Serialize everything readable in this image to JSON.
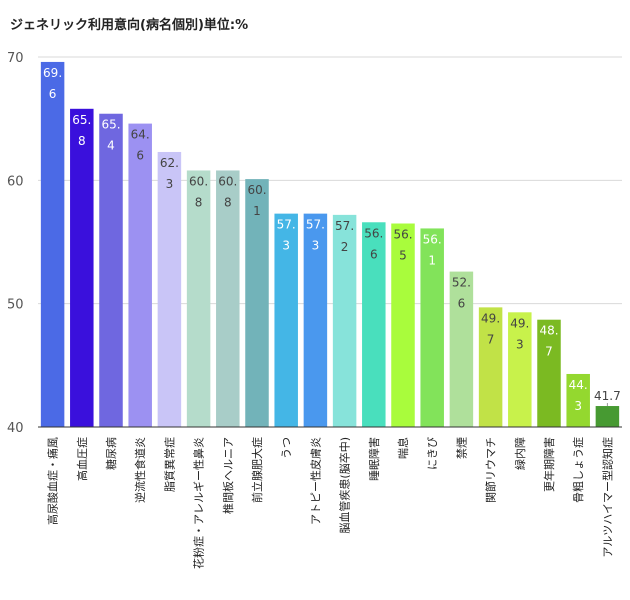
{
  "title": "ジェネリック利用意向(病名個別)単位:%",
  "chart_data": {
    "type": "bar",
    "title": "ジェネリック利用意向(病名個別)単位:%",
    "ylim": [
      40,
      70
    ],
    "yticks": [
      40,
      50,
      60,
      70
    ],
    "grid": true,
    "categories": [
      "高尿酸血症・痛風",
      "高血圧症",
      "糖尿病",
      "逆流性食道炎",
      "脂質異常症",
      "花粉症・アレルギー性鼻炎",
      "椎間板ヘルニア",
      "前立腺肥大症",
      "うつ",
      "アトピー性皮膚炎",
      "脳血管疾患(脳卒中)",
      "睡眠障害",
      "喘息",
      "にきび",
      "禁煙",
      "関節リウマチ",
      "緑内障",
      "更年期障害",
      "骨粗しょう症",
      "アルツハイマー型認知症"
    ],
    "values": [
      69.6,
      65.8,
      65.4,
      64.6,
      62.3,
      60.8,
      60.8,
      60.1,
      57.3,
      57.3,
      57.2,
      56.6,
      56.5,
      56.1,
      52.6,
      49.7,
      49.3,
      48.7,
      44.3,
      41.7
    ],
    "value_labels": [
      [
        "69.",
        "6"
      ],
      [
        "65.",
        "8"
      ],
      [
        "65.",
        "4"
      ],
      [
        "64.",
        "6"
      ],
      [
        "62.",
        "3"
      ],
      [
        "60.",
        "8"
      ],
      [
        "60.",
        "8"
      ],
      [
        "60.",
        "1"
      ],
      [
        "57.",
        "3"
      ],
      [
        "57.",
        "3"
      ],
      [
        "57.",
        "2"
      ],
      [
        "56.",
        "6"
      ],
      [
        "56.",
        "5"
      ],
      [
        "56.",
        "1"
      ],
      [
        "52.",
        "6"
      ],
      [
        "49.",
        "7"
      ],
      [
        "49.",
        "3"
      ],
      [
        "48.",
        "7"
      ],
      [
        "44.",
        "3"
      ],
      [
        "41.7"
      ]
    ],
    "label_colors": [
      "#ffffff",
      "#ffffff",
      "#ffffff",
      "#444444",
      "#444444",
      "#444444",
      "#444444",
      "#444444",
      "#ffffff",
      "#ffffff",
      "#444444",
      "#444444",
      "#444444",
      "#ffffff",
      "#444444",
      "#444444",
      "#444444",
      "#ffffff",
      "#ffffff",
      "#444444"
    ],
    "colors": [
      "#4b6ae6",
      "#3a10dc",
      "#6f67e0",
      "#9c91f2",
      "#c9c5f7",
      "#b5dccb",
      "#a8cdc8",
      "#72b3b9",
      "#44b6e6",
      "#4a98ee",
      "#87e3da",
      "#49dfbd",
      "#a9fc3c",
      "#82e35a",
      "#afe09b",
      "#c1e247",
      "#c8f24b",
      "#7bba22",
      "#94d82f",
      "#479a32"
    ]
  }
}
